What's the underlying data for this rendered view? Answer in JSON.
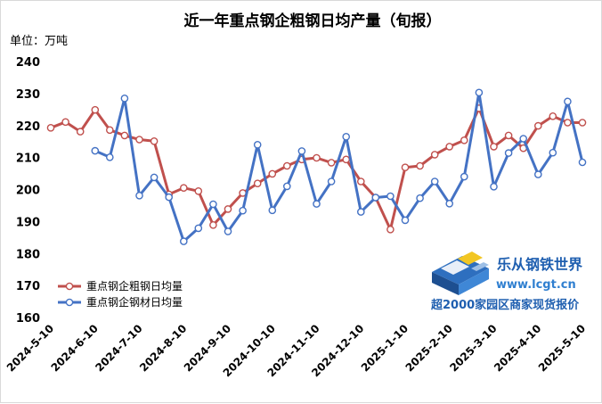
{
  "chart_data": {
    "type": "line",
    "title": "近一年重点钢企粗钢日均产量（旬报）",
    "unit": "单位：万吨",
    "ylim": [
      160,
      240
    ],
    "yticks": [
      160,
      170,
      180,
      190,
      200,
      210,
      220,
      230,
      240
    ],
    "grid": false,
    "legend_position": "bottom-left",
    "x_tick_labels": [
      "2024-5-10",
      "2024-6-10",
      "2024-7-10",
      "2024-8-10",
      "2024-9-10",
      "2024-10-10",
      "2024-11-10",
      "2024-12-10",
      "2025-1-10",
      "2025-2-10",
      "2025-3-10",
      "2025-4-10",
      "2025-5-10"
    ],
    "x_periods": [
      "2024-5-10",
      "2024-5-20",
      "2024-5-31",
      "2024-6-10",
      "2024-6-20",
      "2024-6-30",
      "2024-7-10",
      "2024-7-20",
      "2024-7-31",
      "2024-8-10",
      "2024-8-20",
      "2024-8-31",
      "2024-9-10",
      "2024-9-20",
      "2024-9-30",
      "2024-10-10",
      "2024-10-20",
      "2024-10-31",
      "2024-11-10",
      "2024-11-20",
      "2024-11-30",
      "2024-12-10",
      "2024-12-20",
      "2024-12-31",
      "2025-1-10",
      "2025-1-20",
      "2025-1-31",
      "2025-2-10",
      "2025-2-20",
      "2025-2-28",
      "2025-3-10",
      "2025-3-20",
      "2025-3-31",
      "2025-4-10",
      "2025-4-20",
      "2025-4-30",
      "2025-5-10"
    ],
    "series": [
      {
        "name": "重点钢企粗钢日均量",
        "color": "#c0504d",
        "values": [
          219.3,
          221.1,
          218.1,
          224.9,
          218.6,
          216.9,
          215.6,
          215.1,
          198.5,
          200.5,
          199.5,
          188.9,
          193.9,
          198.9,
          201.9,
          204.9,
          207.4,
          209.4,
          209.9,
          208.4,
          209.4,
          202.5,
          197.5,
          187.5,
          206.9,
          207.4,
          210.9,
          213.4,
          215.4,
          225.4,
          213.4,
          216.9,
          212.9,
          219.9,
          222.9,
          220.9,
          220.9
        ]
      },
      {
        "name": "重点钢企钢材日均量",
        "color": "#4472c4",
        "values": [
          null,
          null,
          null,
          212.1,
          210.1,
          228.5,
          198.1,
          203.8,
          197.6,
          183.8,
          187.9,
          195.4,
          186.9,
          193.4,
          214.0,
          193.5,
          201.0,
          212.0,
          195.5,
          202.5,
          216.5,
          193.0,
          197.5,
          197.9,
          190.4,
          197.3,
          202.5,
          195.6,
          204.0,
          230.3,
          200.9,
          211.4,
          215.9,
          204.7,
          211.5,
          227.5,
          208.5
        ]
      }
    ]
  },
  "watermark": {
    "title": "乐从钢铁世界",
    "url": "www.lcgt.cn",
    "slogan": "超2000家园区商家现货报价"
  }
}
